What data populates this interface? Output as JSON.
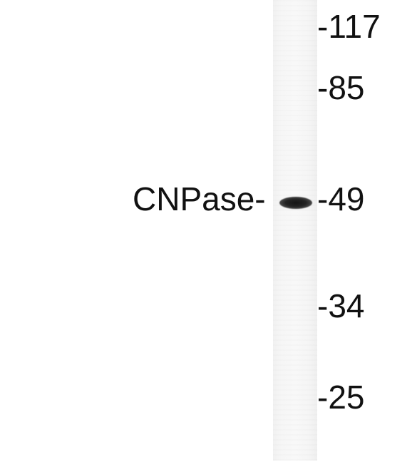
{
  "blot": {
    "protein_label": "CNPase-",
    "markers": [
      "-117",
      "-85",
      "-49",
      "-34",
      "-25"
    ]
  }
}
